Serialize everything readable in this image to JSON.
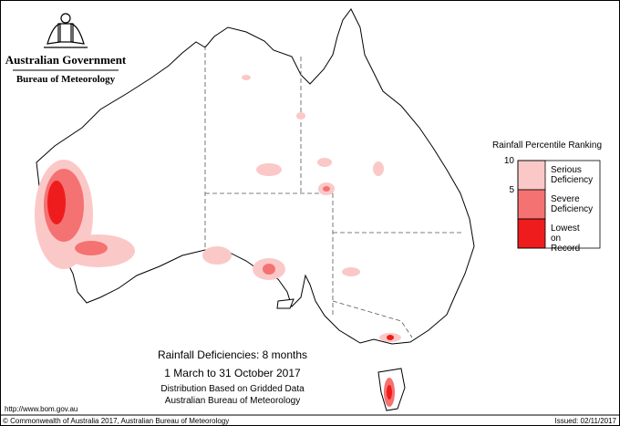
{
  "header": {
    "agency": "Australian Government",
    "bureau": "Bureau of Meteorology"
  },
  "title": {
    "line1": "Rainfall Deficiencies: 8 months",
    "line2": "1 March to 31 October 2017",
    "line3": "Distribution Based on Gridded Data",
    "line4": "Australian Bureau of Meteorology"
  },
  "legend": {
    "title": "Rainfall Percentile Ranking",
    "ticks": [
      10,
      5
    ],
    "items": [
      {
        "label": "Serious Deficiency",
        "color": "#fbc8c8"
      },
      {
        "label": "Severe Deficiency",
        "color": "#f47272"
      },
      {
        "label": "Lowest on Record",
        "color": "#ee1c1c"
      }
    ]
  },
  "footer": {
    "url": "http://www.bom.gov.au",
    "copyright": "© Commonwealth of Australia 2017, Australian Bureau of Meteorology",
    "issued": "Issued: 02/11/2017"
  }
}
